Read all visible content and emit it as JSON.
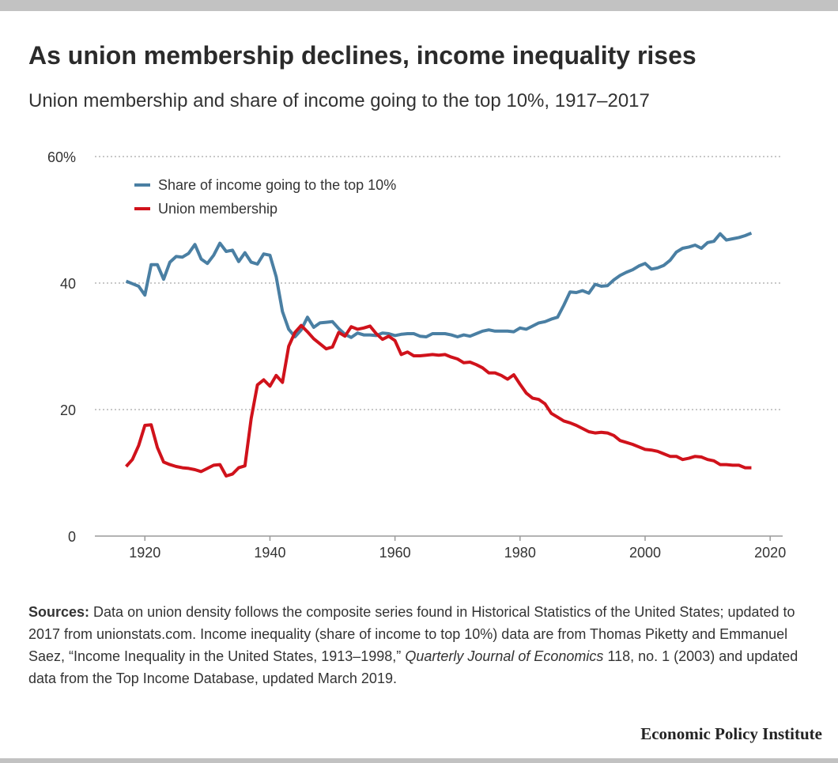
{
  "chart_data": {
    "type": "line",
    "title": "As union membership declines, income inequality rises",
    "subtitle": "Union membership and share of income going to the top 10%, 1917–2017",
    "x": [
      1917,
      1918,
      1919,
      1920,
      1921,
      1922,
      1923,
      1924,
      1925,
      1926,
      1927,
      1928,
      1929,
      1930,
      1931,
      1932,
      1933,
      1934,
      1935,
      1936,
      1937,
      1938,
      1939,
      1940,
      1941,
      1942,
      1943,
      1944,
      1945,
      1946,
      1947,
      1948,
      1949,
      1950,
      1951,
      1952,
      1953,
      1954,
      1955,
      1956,
      1957,
      1958,
      1959,
      1960,
      1961,
      1962,
      1963,
      1964,
      1965,
      1966,
      1967,
      1968,
      1969,
      1970,
      1971,
      1972,
      1973,
      1974,
      1975,
      1976,
      1977,
      1978,
      1979,
      1980,
      1981,
      1982,
      1983,
      1984,
      1985,
      1986,
      1987,
      1988,
      1989,
      1990,
      1991,
      1992,
      1993,
      1994,
      1995,
      1996,
      1997,
      1998,
      1999,
      2000,
      2001,
      2002,
      2003,
      2004,
      2005,
      2006,
      2007,
      2008,
      2009,
      2010,
      2011,
      2012,
      2013,
      2014,
      2015,
      2016,
      2017
    ],
    "series": [
      {
        "name": "Share of income going to the top 10%",
        "color": "#4a7fa3",
        "values": [
          40.3,
          39.9,
          39.5,
          38.1,
          42.9,
          42.9,
          40.6,
          43.3,
          44.2,
          44.1,
          44.7,
          46.1,
          43.8,
          43.1,
          44.4,
          46.3,
          45.0,
          45.2,
          43.4,
          44.8,
          43.3,
          43.0,
          44.6,
          44.4,
          41.0,
          35.5,
          32.7,
          31.5,
          32.6,
          34.6,
          33.0,
          33.7,
          33.8,
          33.9,
          32.8,
          31.9,
          31.4,
          32.1,
          31.8,
          31.8,
          31.7,
          32.1,
          32.0,
          31.7,
          31.9,
          32.0,
          32.0,
          31.6,
          31.5,
          32.0,
          32.0,
          32.0,
          31.8,
          31.5,
          31.8,
          31.6,
          32.0,
          32.4,
          32.6,
          32.4,
          32.4,
          32.4,
          32.3,
          32.9,
          32.7,
          33.2,
          33.7,
          33.9,
          34.3,
          34.6,
          36.5,
          38.6,
          38.5,
          38.8,
          38.4,
          39.8,
          39.5,
          39.6,
          40.5,
          41.2,
          41.7,
          42.1,
          42.7,
          43.1,
          42.2,
          42.4,
          42.8,
          43.6,
          44.9,
          45.5,
          45.7,
          46.0,
          45.5,
          46.4,
          46.6,
          47.8,
          46.8,
          47.0,
          47.2,
          47.5,
          47.9
        ]
      },
      {
        "name": "Union membership",
        "color": "#d0121b",
        "values": [
          11.0,
          12.1,
          14.3,
          17.5,
          17.6,
          14.0,
          11.7,
          11.3,
          11.0,
          10.8,
          10.7,
          10.5,
          10.2,
          10.7,
          11.2,
          11.3,
          9.5,
          9.8,
          10.8,
          11.1,
          18.6,
          23.9,
          24.7,
          23.7,
          25.4,
          24.3,
          30.0,
          32.2,
          33.3,
          32.3,
          31.2,
          30.4,
          29.6,
          29.9,
          32.2,
          31.6,
          33.1,
          32.7,
          32.9,
          33.2,
          32.0,
          31.1,
          31.6,
          30.9,
          28.7,
          29.1,
          28.5,
          28.5,
          28.6,
          28.7,
          28.6,
          28.7,
          28.3,
          28.0,
          27.4,
          27.5,
          27.1,
          26.6,
          25.8,
          25.8,
          25.4,
          24.8,
          25.5,
          24.0,
          22.6,
          21.8,
          21.6,
          20.9,
          19.4,
          18.8,
          18.2,
          17.9,
          17.5,
          17.0,
          16.5,
          16.3,
          16.4,
          16.3,
          15.9,
          15.1,
          14.8,
          14.5,
          14.1,
          13.7,
          13.6,
          13.4,
          13.0,
          12.6,
          12.6,
          12.1,
          12.3,
          12.6,
          12.5,
          12.1,
          11.9,
          11.3,
          11.3,
          11.2,
          11.2,
          10.8,
          10.8
        ]
      }
    ],
    "xlim": [
      1912,
      2022
    ],
    "xticks": [
      1920,
      1940,
      1960,
      1980,
      2000,
      2020
    ],
    "ylim": [
      0,
      60
    ],
    "yticks": [
      0,
      20,
      40,
      {
        "value": 60,
        "label": "60%"
      }
    ],
    "grid": true,
    "legend": "upper left",
    "sources": {
      "label": "Sources:",
      "text_1": "Data on union density follows the composite series found in Historical Statistics of the United States; updated to 2017 from unionstats.com. Income inequality (share of income to top 10%) data are from Thomas Piketty and Emmanuel Saez, “Income Inequality in the United States, 1913–1998,”",
      "journal": "Quarterly Journal of Economics",
      "text_2": "118, no. 1 (2003) and updated data from the Top Income Database, updated March 2019."
    },
    "credit": "Economic Policy Institute"
  }
}
